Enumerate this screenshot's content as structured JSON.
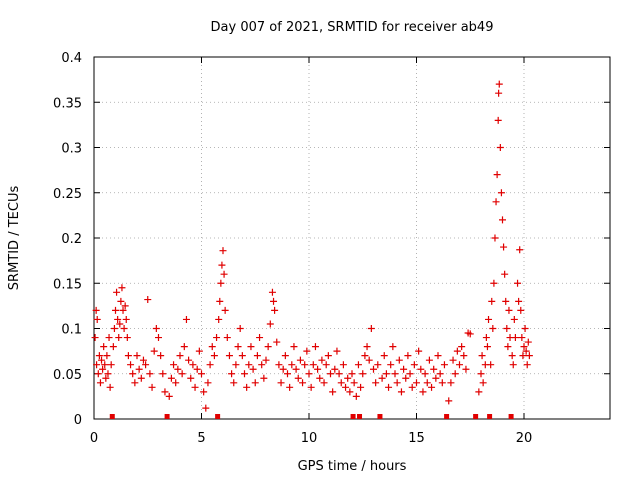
{
  "chart_data": {
    "type": "scatter",
    "title": "Day 007 of 2021, SRMTID for receiver ab49",
    "xlabel": "GPS time / hours",
    "ylabel": "SRMTID / TECUs",
    "xlim": [
      0,
      24
    ],
    "ylim": [
      0,
      0.4
    ],
    "grid": true,
    "marker": "+",
    "series_color": "#e00000",
    "xticks": [
      0,
      5,
      10,
      15,
      20
    ],
    "xtick_labels": [
      "0",
      "5",
      "10",
      "15",
      "20"
    ],
    "yticks": [
      0,
      0.05,
      0.1,
      0.15,
      0.2,
      0.25,
      0.3,
      0.35,
      0.4
    ],
    "ytick_labels": [
      "0",
      "0.05",
      "0.1",
      "0.15",
      "0.2",
      "0.25",
      "0.3",
      "0.35",
      "0.4"
    ],
    "baseline_markers_x": [
      0.85,
      3.4,
      5.75,
      12.05,
      12.35,
      13.3,
      16.4,
      17.75,
      18.4,
      19.4
    ],
    "series": [
      {
        "name": "SRMTID",
        "points": [
          [
            0.05,
            0.09
          ],
          [
            0.1,
            0.12
          ],
          [
            0.12,
            0.06
          ],
          [
            0.15,
            0.11
          ],
          [
            0.2,
            0.05
          ],
          [
            0.25,
            0.07
          ],
          [
            0.3,
            0.04
          ],
          [
            0.35,
            0.065
          ],
          [
            0.4,
            0.055
          ],
          [
            0.45,
            0.08
          ],
          [
            0.5,
            0.06
          ],
          [
            0.55,
            0.045
          ],
          [
            0.6,
            0.07
          ],
          [
            0.65,
            0.05
          ],
          [
            0.7,
            0.09
          ],
          [
            0.75,
            0.035
          ],
          [
            0.8,
            0.06
          ],
          [
            0.9,
            0.08
          ],
          [
            0.95,
            0.1
          ],
          [
            1.0,
            0.12
          ],
          [
            1.05,
            0.14
          ],
          [
            1.1,
            0.11
          ],
          [
            1.15,
            0.09
          ],
          [
            1.2,
            0.105
          ],
          [
            1.25,
            0.13
          ],
          [
            1.3,
            0.145
          ],
          [
            1.35,
            0.12
          ],
          [
            1.4,
            0.1
          ],
          [
            1.45,
            0.125
          ],
          [
            1.5,
            0.11
          ],
          [
            1.55,
            0.09
          ],
          [
            1.6,
            0.07
          ],
          [
            1.7,
            0.06
          ],
          [
            1.8,
            0.05
          ],
          [
            1.9,
            0.04
          ],
          [
            2.0,
            0.07
          ],
          [
            2.1,
            0.055
          ],
          [
            2.2,
            0.045
          ],
          [
            2.3,
            0.065
          ],
          [
            2.4,
            0.06
          ],
          [
            2.5,
            0.132
          ],
          [
            2.6,
            0.05
          ],
          [
            2.7,
            0.035
          ],
          [
            2.8,
            0.075
          ],
          [
            2.9,
            0.1
          ],
          [
            3.0,
            0.09
          ],
          [
            3.1,
            0.07
          ],
          [
            3.2,
            0.05
          ],
          [
            3.3,
            0.03
          ],
          [
            3.5,
            0.025
          ],
          [
            3.6,
            0.045
          ],
          [
            3.7,
            0.06
          ],
          [
            3.8,
            0.04
          ],
          [
            3.9,
            0.055
          ],
          [
            4.0,
            0.07
          ],
          [
            4.1,
            0.05
          ],
          [
            4.2,
            0.08
          ],
          [
            4.3,
            0.11
          ],
          [
            4.4,
            0.065
          ],
          [
            4.5,
            0.045
          ],
          [
            4.6,
            0.06
          ],
          [
            4.7,
            0.035
          ],
          [
            4.8,
            0.055
          ],
          [
            4.9,
            0.075
          ],
          [
            5.0,
            0.05
          ],
          [
            5.1,
            0.03
          ],
          [
            5.2,
            0.012
          ],
          [
            5.3,
            0.04
          ],
          [
            5.4,
            0.06
          ],
          [
            5.5,
            0.08
          ],
          [
            5.6,
            0.07
          ],
          [
            5.7,
            0.09
          ],
          [
            5.8,
            0.11
          ],
          [
            5.85,
            0.13
          ],
          [
            5.9,
            0.15
          ],
          [
            5.95,
            0.17
          ],
          [
            6.0,
            0.186
          ],
          [
            6.05,
            0.16
          ],
          [
            6.1,
            0.12
          ],
          [
            6.2,
            0.09
          ],
          [
            6.3,
            0.07
          ],
          [
            6.4,
            0.05
          ],
          [
            6.5,
            0.04
          ],
          [
            6.6,
            0.06
          ],
          [
            6.7,
            0.08
          ],
          [
            6.8,
            0.1
          ],
          [
            6.9,
            0.07
          ],
          [
            7.0,
            0.05
          ],
          [
            7.1,
            0.035
          ],
          [
            7.2,
            0.06
          ],
          [
            7.3,
            0.08
          ],
          [
            7.4,
            0.055
          ],
          [
            7.5,
            0.04
          ],
          [
            7.6,
            0.07
          ],
          [
            7.7,
            0.09
          ],
          [
            7.8,
            0.06
          ],
          [
            7.9,
            0.045
          ],
          [
            8.0,
            0.065
          ],
          [
            8.1,
            0.08
          ],
          [
            8.2,
            0.105
          ],
          [
            8.3,
            0.14
          ],
          [
            8.35,
            0.13
          ],
          [
            8.4,
            0.12
          ],
          [
            8.5,
            0.085
          ],
          [
            8.6,
            0.06
          ],
          [
            8.7,
            0.04
          ],
          [
            8.8,
            0.055
          ],
          [
            8.9,
            0.07
          ],
          [
            9.0,
            0.05
          ],
          [
            9.1,
            0.035
          ],
          [
            9.2,
            0.06
          ],
          [
            9.3,
            0.08
          ],
          [
            9.4,
            0.055
          ],
          [
            9.5,
            0.045
          ],
          [
            9.6,
            0.065
          ],
          [
            9.7,
            0.04
          ],
          [
            9.8,
            0.06
          ],
          [
            9.9,
            0.075
          ],
          [
            10.0,
            0.05
          ],
          [
            10.1,
            0.035
          ],
          [
            10.2,
            0.06
          ],
          [
            10.3,
            0.08
          ],
          [
            10.4,
            0.055
          ],
          [
            10.5,
            0.045
          ],
          [
            10.6,
            0.065
          ],
          [
            10.7,
            0.04
          ],
          [
            10.8,
            0.06
          ],
          [
            10.9,
            0.07
          ],
          [
            11.0,
            0.05
          ],
          [
            11.1,
            0.03
          ],
          [
            11.2,
            0.055
          ],
          [
            11.3,
            0.075
          ],
          [
            11.4,
            0.05
          ],
          [
            11.5,
            0.04
          ],
          [
            11.6,
            0.06
          ],
          [
            11.7,
            0.035
          ],
          [
            11.8,
            0.045
          ],
          [
            11.9,
            0.03
          ],
          [
            12.0,
            0.05
          ],
          [
            12.1,
            0.04
          ],
          [
            12.2,
            0.025
          ],
          [
            12.3,
            0.06
          ],
          [
            12.4,
            0.035
          ],
          [
            12.5,
            0.05
          ],
          [
            12.6,
            0.07
          ],
          [
            12.7,
            0.08
          ],
          [
            12.8,
            0.065
          ],
          [
            12.9,
            0.1
          ],
          [
            13.0,
            0.055
          ],
          [
            13.1,
            0.04
          ],
          [
            13.2,
            0.06
          ],
          [
            13.4,
            0.045
          ],
          [
            13.5,
            0.07
          ],
          [
            13.6,
            0.05
          ],
          [
            13.7,
            0.035
          ],
          [
            13.8,
            0.06
          ],
          [
            13.9,
            0.08
          ],
          [
            14.0,
            0.05
          ],
          [
            14.1,
            0.04
          ],
          [
            14.2,
            0.065
          ],
          [
            14.3,
            0.03
          ],
          [
            14.4,
            0.055
          ],
          [
            14.5,
            0.045
          ],
          [
            14.6,
            0.07
          ],
          [
            14.7,
            0.05
          ],
          [
            14.8,
            0.035
          ],
          [
            14.9,
            0.06
          ],
          [
            15.0,
            0.04
          ],
          [
            15.1,
            0.075
          ],
          [
            15.2,
            0.055
          ],
          [
            15.3,
            0.03
          ],
          [
            15.4,
            0.05
          ],
          [
            15.5,
            0.04
          ],
          [
            15.6,
            0.065
          ],
          [
            15.7,
            0.035
          ],
          [
            15.8,
            0.055
          ],
          [
            15.9,
            0.045
          ],
          [
            16.0,
            0.07
          ],
          [
            16.1,
            0.05
          ],
          [
            16.2,
            0.04
          ],
          [
            16.3,
            0.06
          ],
          [
            16.5,
            0.02
          ],
          [
            16.6,
            0.04
          ],
          [
            16.7,
            0.065
          ],
          [
            16.8,
            0.05
          ],
          [
            16.9,
            0.075
          ],
          [
            17.0,
            0.06
          ],
          [
            17.1,
            0.08
          ],
          [
            17.2,
            0.07
          ],
          [
            17.3,
            0.055
          ],
          [
            17.4,
            0.095
          ],
          [
            17.5,
            0.094
          ],
          [
            17.9,
            0.03
          ],
          [
            18.0,
            0.05
          ],
          [
            18.05,
            0.07
          ],
          [
            18.1,
            0.04
          ],
          [
            18.2,
            0.06
          ],
          [
            18.25,
            0.09
          ],
          [
            18.3,
            0.08
          ],
          [
            18.35,
            0.11
          ],
          [
            18.45,
            0.06
          ],
          [
            18.5,
            0.13
          ],
          [
            18.55,
            0.1
          ],
          [
            18.6,
            0.15
          ],
          [
            18.65,
            0.2
          ],
          [
            18.7,
            0.24
          ],
          [
            18.75,
            0.27
          ],
          [
            18.8,
            0.33
          ],
          [
            18.82,
            0.36
          ],
          [
            18.85,
            0.37
          ],
          [
            18.9,
            0.3
          ],
          [
            18.95,
            0.25
          ],
          [
            19.0,
            0.22
          ],
          [
            19.05,
            0.19
          ],
          [
            19.1,
            0.16
          ],
          [
            19.15,
            0.13
          ],
          [
            19.2,
            0.1
          ],
          [
            19.25,
            0.08
          ],
          [
            19.3,
            0.12
          ],
          [
            19.35,
            0.09
          ],
          [
            19.45,
            0.07
          ],
          [
            19.5,
            0.06
          ],
          [
            19.55,
            0.11
          ],
          [
            19.6,
            0.09
          ],
          [
            19.7,
            0.15
          ],
          [
            19.75,
            0.13
          ],
          [
            19.8,
            0.187
          ],
          [
            19.85,
            0.12
          ],
          [
            19.9,
            0.09
          ],
          [
            19.95,
            0.07
          ],
          [
            20.0,
            0.08
          ],
          [
            20.05,
            0.1
          ],
          [
            20.1,
            0.075
          ],
          [
            20.15,
            0.06
          ],
          [
            20.2,
            0.085
          ],
          [
            20.25,
            0.07
          ]
        ]
      }
    ]
  }
}
